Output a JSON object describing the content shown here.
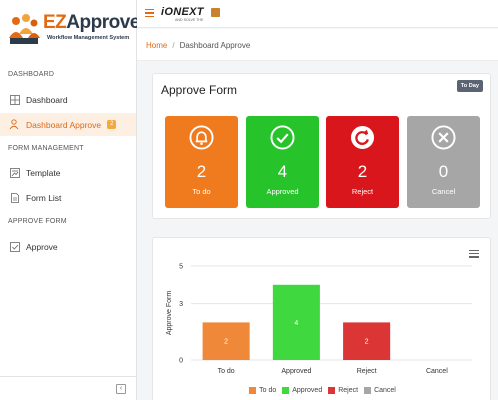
{
  "logo": {
    "brand_ez": "EZ",
    "brand_rest": "Approve",
    "tagline": "Workflow Management System"
  },
  "header": {
    "brand_i": "i",
    "brand_rest": "ONEXT",
    "brand_sub": "AND SOLVE THE"
  },
  "breadcrumb": {
    "home": "Home",
    "separator": "/",
    "current": "Dashboard Approve"
  },
  "sidebar": {
    "sections": [
      {
        "label": "DASHBOARD"
      },
      {
        "label": "FORM MANAGEMENT"
      },
      {
        "label": "APPROVE FORM"
      }
    ],
    "items": [
      {
        "label": "Dashboard",
        "icon": "dashboard-icon"
      },
      {
        "label": "Dashboard Approve",
        "icon": "user-approve-icon",
        "badge": "2",
        "active": true
      },
      {
        "label": "Template",
        "icon": "template-icon"
      },
      {
        "label": "Form List",
        "icon": "form-list-icon"
      },
      {
        "label": "Approve",
        "icon": "approve-check-icon"
      }
    ]
  },
  "approve_form": {
    "title": "Approve Form",
    "today_label": "To Day",
    "tiles": [
      {
        "label": "To do",
        "count": "2",
        "color": "#f07a1e",
        "icon": "bell-icon"
      },
      {
        "label": "Approved",
        "count": "4",
        "color": "#27c32b",
        "icon": "check-circle-icon"
      },
      {
        "label": "Reject",
        "count": "2",
        "color": "#d8161b",
        "icon": "redo-circle-icon"
      },
      {
        "label": "Cancel",
        "count": "0",
        "color": "#a6a6a6",
        "icon": "close-circle-icon"
      }
    ]
  },
  "chart_data": {
    "type": "bar",
    "categories": [
      "To do",
      "Approved",
      "Reject",
      "Cancel"
    ],
    "values": [
      2,
      4,
      2,
      0
    ],
    "colors": [
      "#f0883a",
      "#3fd83f",
      "#dc3535",
      "#a6a6a6"
    ],
    "ylabel": "Approve Form",
    "yticks": [
      0,
      3,
      5
    ],
    "ylim": [
      0,
      5
    ],
    "legend": [
      "To do",
      "Approved",
      "Reject",
      "Cancel"
    ],
    "legend_position": "bottom"
  }
}
